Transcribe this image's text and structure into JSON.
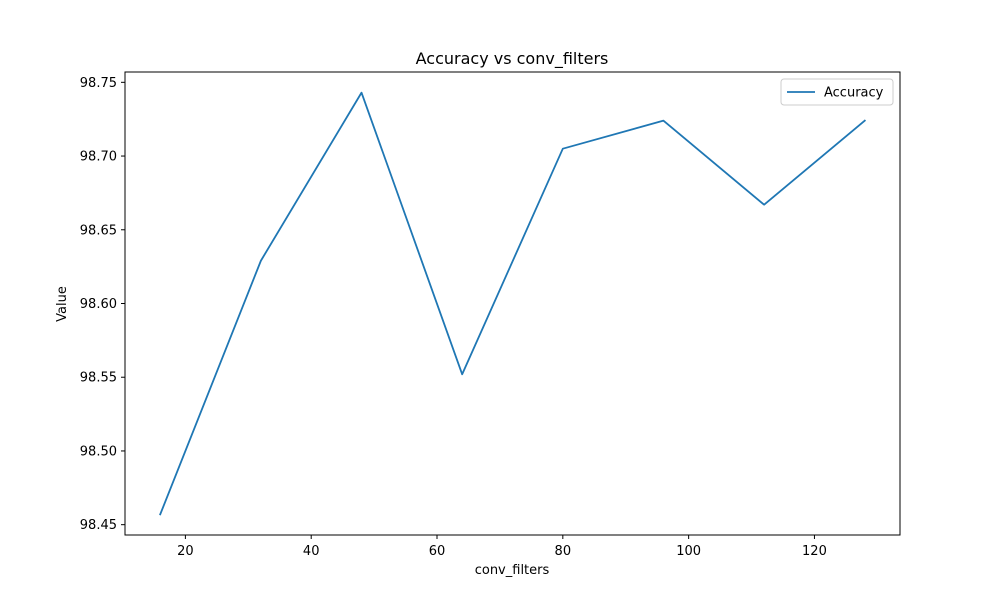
{
  "chart_data": {
    "type": "line",
    "title": "Accuracy vs conv_filters",
    "xlabel": "conv_filters",
    "ylabel": "Value",
    "x": [
      16,
      32,
      48,
      64,
      80,
      96,
      112,
      128
    ],
    "series": [
      {
        "name": "Accuracy",
        "color": "#1f77b4",
        "values": [
          98.457,
          98.629,
          98.743,
          98.552,
          98.705,
          98.724,
          98.667,
          98.724
        ]
      }
    ],
    "xlim": [
      10.4,
      133.6
    ],
    "ylim": [
      98.443,
      98.757
    ],
    "xticks": [
      20,
      40,
      60,
      80,
      100,
      120
    ],
    "yticks": [
      98.45,
      98.5,
      98.55,
      98.6,
      98.65,
      98.7,
      98.75
    ],
    "xtick_labels": [
      "20",
      "40",
      "60",
      "80",
      "100",
      "120"
    ],
    "ytick_labels": [
      "98.45",
      "98.50",
      "98.55",
      "98.60",
      "98.65",
      "98.70",
      "98.75"
    ],
    "grid": false,
    "legend_position": "top-right"
  }
}
